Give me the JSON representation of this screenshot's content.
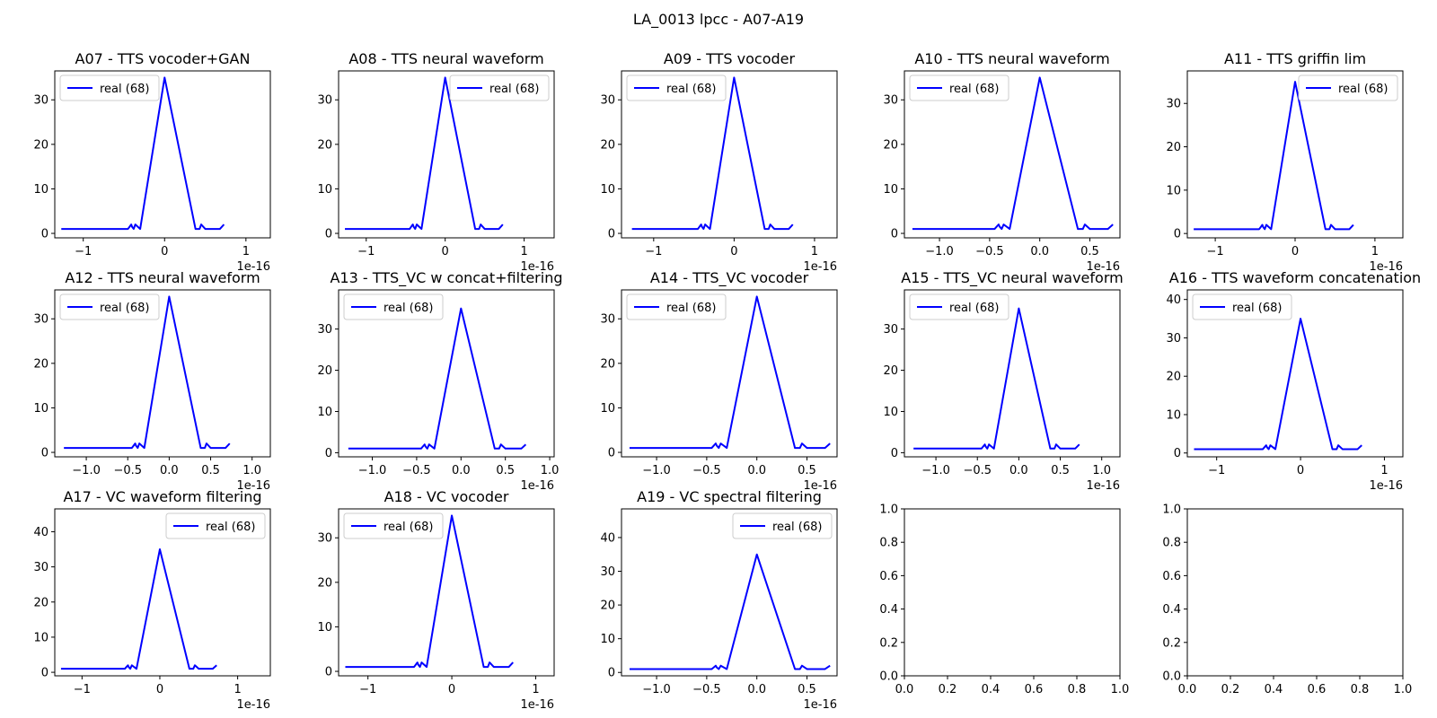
{
  "suptitle": "LA_0013 lpcc - A07-A19",
  "line_color": "#0000ff",
  "chart_data": [
    {
      "type": "line",
      "title": "A07 - TTS vocoder+GAN",
      "x_tick_labels": [
        "−1",
        "0",
        "1"
      ],
      "x_ticks": [
        -1,
        0,
        1
      ],
      "xlim": [
        -1.35,
        1.3
      ],
      "y_ticks": [
        0,
        10,
        20,
        30
      ],
      "ylim": [
        -1,
        36.5
      ],
      "legend": "top-left",
      "offset_text": "1e-16",
      "series": [
        {
          "name": "real (68)",
          "x": [
            -1.27,
            -0.45,
            -0.43,
            -0.41,
            -0.4,
            -0.38,
            -0.36,
            -0.3,
            0,
            0.38,
            0.43,
            0.45,
            0.5,
            0.68,
            0.73
          ],
          "y": [
            1,
            1,
            1.5,
            2,
            1.5,
            1,
            2,
            1,
            35,
            1,
            1,
            2,
            1,
            1,
            2
          ]
        }
      ]
    },
    {
      "type": "line",
      "title": "A08 - TTS neural waveform",
      "x_tick_labels": [
        "−1",
        "0",
        "1"
      ],
      "x_ticks": [
        -1,
        0,
        1
      ],
      "xlim": [
        -1.35,
        1.38
      ],
      "y_ticks": [
        0,
        10,
        20,
        30
      ],
      "ylim": [
        -1,
        36.5
      ],
      "legend": "top-right",
      "offset_text": "1e-16",
      "series": [
        {
          "name": "real (68)",
          "x": [
            -1.27,
            -0.45,
            -0.43,
            -0.41,
            -0.4,
            -0.38,
            -0.36,
            -0.3,
            0,
            0.38,
            0.43,
            0.45,
            0.5,
            0.68,
            0.73
          ],
          "y": [
            1,
            1,
            1.5,
            2,
            1.5,
            1,
            2,
            1,
            35,
            1,
            1,
            2,
            1,
            1,
            2
          ]
        }
      ]
    },
    {
      "type": "line",
      "title": "A09 - TTS vocoder",
      "x_tick_labels": [
        "−1",
        "0",
        "1"
      ],
      "x_ticks": [
        -1,
        0,
        1
      ],
      "xlim": [
        -1.4,
        1.28
      ],
      "y_ticks": [
        0,
        10,
        20,
        30
      ],
      "ylim": [
        -1,
        36.5
      ],
      "legend": "top-left",
      "offset_text": "1e-16",
      "series": [
        {
          "name": "real (68)",
          "x": [
            -1.27,
            -0.45,
            -0.43,
            -0.41,
            -0.4,
            -0.38,
            -0.36,
            -0.3,
            0,
            0.38,
            0.43,
            0.45,
            0.5,
            0.68,
            0.73
          ],
          "y": [
            1,
            1,
            1.5,
            2,
            1.5,
            1,
            2,
            1,
            35,
            1,
            1,
            2,
            1,
            1,
            2
          ]
        }
      ]
    },
    {
      "type": "line",
      "title": "A10 - TTS neural waveform",
      "x_tick_labels": [
        "−1.0",
        "−0.5",
        "0.0",
        "0.5"
      ],
      "x_ticks": [
        -1,
        -0.5,
        0,
        0.5
      ],
      "xlim": [
        -1.35,
        0.8
      ],
      "y_ticks": [
        0,
        10,
        20,
        30
      ],
      "ylim": [
        -1,
        36.5
      ],
      "legend": "top-left",
      "offset_text": "1e-16",
      "series": [
        {
          "name": "real (68)",
          "x": [
            -1.27,
            -0.45,
            -0.43,
            -0.41,
            -0.4,
            -0.38,
            -0.36,
            -0.3,
            0,
            0.38,
            0.43,
            0.45,
            0.5,
            0.68,
            0.73
          ],
          "y": [
            1,
            1,
            1.5,
            2,
            1.5,
            1,
            2,
            1,
            35,
            1,
            1,
            2,
            1,
            1,
            2
          ]
        }
      ]
    },
    {
      "type": "line",
      "title": "A11 - TTS griffin lim",
      "x_tick_labels": [
        "−1",
        "0",
        "1"
      ],
      "x_ticks": [
        -1,
        0,
        1
      ],
      "xlim": [
        -1.35,
        1.35
      ],
      "y_ticks": [
        0,
        10,
        20,
        30
      ],
      "ylim": [
        -1,
        37.5
      ],
      "legend": "top-right",
      "offset_text": "1e-16",
      "series": [
        {
          "name": "real (68)",
          "x": [
            -1.27,
            -0.45,
            -0.43,
            -0.41,
            -0.4,
            -0.38,
            -0.36,
            -0.3,
            0,
            0.38,
            0.43,
            0.45,
            0.5,
            0.68,
            0.73
          ],
          "y": [
            1,
            1,
            1.5,
            2,
            1.5,
            1,
            2,
            1,
            35,
            1,
            1,
            2,
            1,
            1,
            2
          ]
        }
      ]
    },
    {
      "type": "line",
      "title": "A12 - TTS neural waveform",
      "x_tick_labels": [
        "−1.0",
        "−0.5",
        "0.0",
        "0.5",
        "1.0"
      ],
      "x_ticks": [
        -1,
        -0.5,
        0,
        0.5,
        1
      ],
      "xlim": [
        -1.38,
        1.22
      ],
      "y_ticks": [
        0,
        10,
        20,
        30
      ],
      "ylim": [
        -1,
        36.5
      ],
      "legend": "top-left",
      "offset_text": "1e-16",
      "series": [
        {
          "name": "real (68)",
          "x": [
            -1.27,
            -0.45,
            -0.43,
            -0.41,
            -0.4,
            -0.38,
            -0.36,
            -0.3,
            0,
            0.38,
            0.43,
            0.45,
            0.5,
            0.68,
            0.73
          ],
          "y": [
            1,
            1,
            1.5,
            2,
            1.5,
            1,
            2,
            1,
            35,
            1,
            1,
            2,
            1,
            1,
            2
          ]
        }
      ]
    },
    {
      "type": "line",
      "title": "A13 - TTS_VC w concat+filtering",
      "x_tick_labels": [
        "−1.0",
        "−0.5",
        "0.0",
        "0.5",
        "1.0"
      ],
      "x_ticks": [
        -1,
        -0.5,
        0,
        0.5,
        1
      ],
      "xlim": [
        -1.38,
        1.05
      ],
      "y_ticks": [
        0,
        10,
        20,
        30
      ],
      "ylim": [
        -1,
        39.5
      ],
      "legend": "top-left",
      "offset_text": "1e-16",
      "series": [
        {
          "name": "real (68)",
          "x": [
            -1.27,
            -0.45,
            -0.43,
            -0.41,
            -0.4,
            -0.38,
            -0.36,
            -0.3,
            0,
            0.38,
            0.43,
            0.45,
            0.5,
            0.68,
            0.73
          ],
          "y": [
            1,
            1,
            1.5,
            2,
            1.5,
            1,
            2,
            1,
            35,
            1,
            1,
            2,
            1,
            1,
            2
          ]
        }
      ]
    },
    {
      "type": "line",
      "title": "A14 - TTS_VC vocoder",
      "x_tick_labels": [
        "−1.0",
        "−0.5",
        "0.0",
        "0.5"
      ],
      "x_ticks": [
        -1,
        -0.5,
        0,
        0.5
      ],
      "xlim": [
        -1.35,
        0.8
      ],
      "y_ticks": [
        0,
        10,
        20,
        30
      ],
      "ylim": [
        -1,
        36.5
      ],
      "legend": "top-left",
      "offset_text": "1e-16",
      "series": [
        {
          "name": "real (68)",
          "x": [
            -1.27,
            -0.45,
            -0.43,
            -0.41,
            -0.4,
            -0.38,
            -0.36,
            -0.3,
            0,
            0.38,
            0.43,
            0.45,
            0.5,
            0.68,
            0.73
          ],
          "y": [
            1,
            1,
            1.5,
            2,
            1.5,
            1,
            2,
            1,
            35,
            1,
            1,
            2,
            1,
            1,
            2
          ]
        }
      ]
    },
    {
      "type": "line",
      "title": "A15 - TTS_VC neural waveform",
      "x_tick_labels": [
        "−1.0",
        "−0.5",
        "0.0",
        "0.5",
        "1.0"
      ],
      "x_ticks": [
        -1,
        -0.5,
        0,
        0.5,
        1
      ],
      "xlim": [
        -1.38,
        1.22
      ],
      "y_ticks": [
        0,
        10,
        20,
        30
      ],
      "ylim": [
        -1,
        39.5
      ],
      "legend": "top-left",
      "offset_text": "1e-16",
      "series": [
        {
          "name": "real (68)",
          "x": [
            -1.27,
            -0.45,
            -0.43,
            -0.41,
            -0.4,
            -0.38,
            -0.36,
            -0.3,
            0,
            0.38,
            0.43,
            0.45,
            0.5,
            0.68,
            0.73
          ],
          "y": [
            1,
            1,
            1.5,
            2,
            1.5,
            1,
            2,
            1,
            35,
            1,
            1,
            2,
            1,
            1,
            2
          ]
        }
      ]
    },
    {
      "type": "line",
      "title": "A16 - TTS waveform concatenation",
      "x_tick_labels": [
        "−1",
        "0",
        "1"
      ],
      "x_ticks": [
        -1,
        0,
        1
      ],
      "xlim": [
        -1.35,
        1.22
      ],
      "y_ticks": [
        0,
        10,
        20,
        30,
        40
      ],
      "ylim": [
        -1,
        42.5
      ],
      "legend": "top-left",
      "offset_text": "1e-16",
      "series": [
        {
          "name": "real (68)",
          "x": [
            -1.27,
            -0.45,
            -0.43,
            -0.41,
            -0.4,
            -0.38,
            -0.36,
            -0.3,
            0,
            0.38,
            0.43,
            0.45,
            0.5,
            0.68,
            0.73
          ],
          "y": [
            1,
            1,
            1.5,
            2,
            1.5,
            1,
            2,
            1,
            35,
            1,
            1,
            2,
            1,
            1,
            2
          ]
        }
      ]
    },
    {
      "type": "line",
      "title": "A17 - VC waveform filtering",
      "x_tick_labels": [
        "−1",
        "0",
        "1"
      ],
      "x_ticks": [
        -1,
        0,
        1
      ],
      "xlim": [
        -1.35,
        1.42
      ],
      "y_ticks": [
        0,
        10,
        20,
        30,
        40
      ],
      "ylim": [
        -1,
        46.5
      ],
      "legend": "top-right",
      "offset_text": "1e-16",
      "series": [
        {
          "name": "real (68)",
          "x": [
            -1.27,
            -0.45,
            -0.43,
            -0.41,
            -0.4,
            -0.38,
            -0.36,
            -0.3,
            0,
            0.38,
            0.43,
            0.45,
            0.5,
            0.68,
            0.73
          ],
          "y": [
            1,
            1,
            1.5,
            2,
            1.5,
            1,
            2,
            1,
            35,
            1,
            1,
            2,
            1,
            1,
            2
          ]
        }
      ]
    },
    {
      "type": "line",
      "title": "A18 - VC vocoder",
      "x_tick_labels": [
        "−1",
        "0",
        "1"
      ],
      "x_ticks": [
        -1,
        0,
        1
      ],
      "xlim": [
        -1.35,
        1.22
      ],
      "y_ticks": [
        0,
        10,
        20,
        30
      ],
      "ylim": [
        -1,
        36.5
      ],
      "legend": "top-left",
      "offset_text": "1e-16",
      "series": [
        {
          "name": "real (68)",
          "x": [
            -1.27,
            -0.45,
            -0.43,
            -0.41,
            -0.4,
            -0.38,
            -0.36,
            -0.3,
            0,
            0.38,
            0.43,
            0.45,
            0.5,
            0.68,
            0.73
          ],
          "y": [
            1,
            1,
            1.5,
            2,
            1.5,
            1,
            2,
            1,
            35,
            1,
            1,
            2,
            1,
            1,
            2
          ]
        }
      ]
    },
    {
      "type": "line",
      "title": "A19 - VC spectral filtering",
      "x_tick_labels": [
        "−1.0",
        "−0.5",
        "0.0",
        "0.5"
      ],
      "x_ticks": [
        -1,
        -0.5,
        0,
        0.5
      ],
      "xlim": [
        -1.35,
        0.8
      ],
      "y_ticks": [
        0,
        10,
        20,
        30,
        40
      ],
      "ylim": [
        -1,
        48.5
      ],
      "legend": "top-right",
      "offset_text": "1e-16",
      "series": [
        {
          "name": "real (68)",
          "x": [
            -1.27,
            -0.45,
            -0.43,
            -0.41,
            -0.4,
            -0.38,
            -0.36,
            -0.3,
            0,
            0.38,
            0.43,
            0.45,
            0.5,
            0.68,
            0.73
          ],
          "y": [
            1,
            1,
            1.5,
            2,
            1.5,
            1,
            2,
            1,
            35,
            1,
            1,
            2,
            1,
            1,
            2
          ]
        }
      ]
    },
    {
      "type": "line",
      "title": "",
      "x_tick_labels": [
        "0.0",
        "0.2",
        "0.4",
        "0.6",
        "0.8",
        "1.0"
      ],
      "x_ticks": [
        0,
        0.2,
        0.4,
        0.6,
        0.8,
        1
      ],
      "xlim": [
        0,
        1
      ],
      "y_ticks": [
        0,
        0.2,
        0.4,
        0.6,
        0.8,
        1
      ],
      "y_tick_labels": [
        "0.0",
        "0.2",
        "0.4",
        "0.6",
        "0.8",
        "1.0"
      ],
      "ylim": [
        0,
        1
      ],
      "series": []
    },
    {
      "type": "line",
      "title": "",
      "x_tick_labels": [
        "0.0",
        "0.2",
        "0.4",
        "0.6",
        "0.8",
        "1.0"
      ],
      "x_ticks": [
        0,
        0.2,
        0.4,
        0.6,
        0.8,
        1
      ],
      "xlim": [
        0,
        1
      ],
      "y_ticks": [
        0,
        0.2,
        0.4,
        0.6,
        0.8,
        1
      ],
      "y_tick_labels": [
        "0.0",
        "0.2",
        "0.4",
        "0.6",
        "0.8",
        "1.0"
      ],
      "ylim": [
        0,
        1
      ],
      "series": []
    }
  ]
}
